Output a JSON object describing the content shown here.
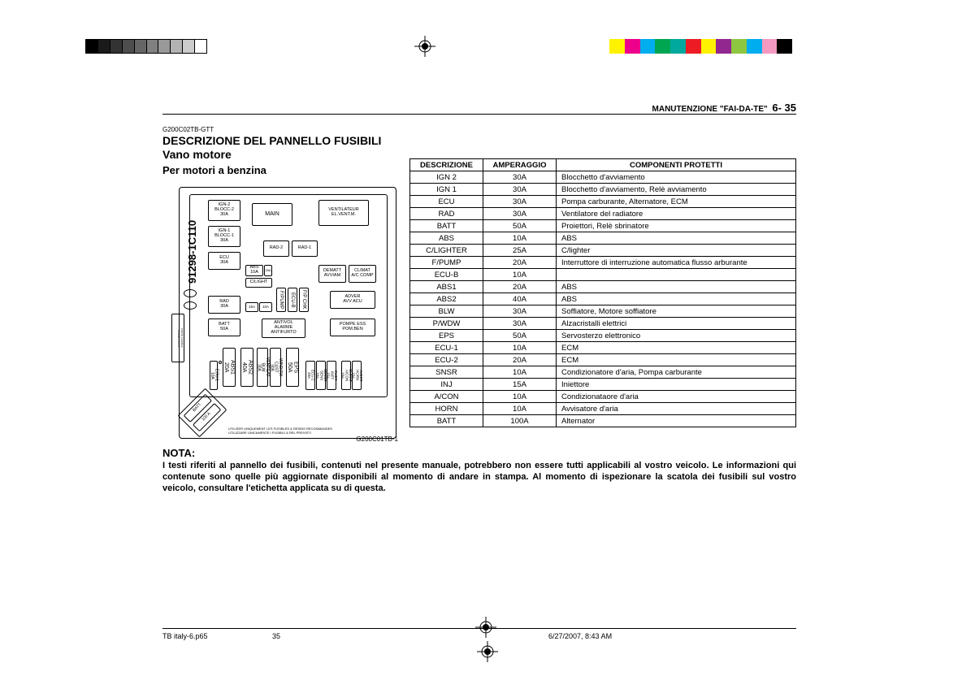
{
  "header": {
    "section": "MANUTENZIONE \"FAI-DA-TE\"",
    "pagenum": "6- 35",
    "refcode": "G200C02TB-GTT",
    "title1": "DESCRIZIONE DEL PANNELLO FUSIBILI",
    "title2": "Vano motore",
    "subtitle": "Per motori a benzina"
  },
  "diagram": {
    "partno": "91298-1C110",
    "caption": "G200C01TB-1",
    "tinytext1": "UTILISER UNIQUEMENT LES FUSIBLES & RESINS RECOMMANDES",
    "tinytext2": "UTILIZZARE UNICAMENTE I FUSIBILI & REL PREVISTI",
    "boxes": {
      "ign2": "IGN-2\nBLOCC-2\n30A",
      "ign1": "IGN-1\nBLOCC-1\n30A",
      "ecu": "ECU\n30A",
      "rad": "RAD\n30A",
      "batt50": "BATT\n50A",
      "main": "MAIN",
      "vent": "VENTILATEUR\nEL.VENT.M.",
      "rad2": "RAD-2",
      "rad1": "RAD-1",
      "abs10": "ABS\n10A",
      "clight": "C/LIGHT",
      "clight25": "25A",
      "fpump15": "15A",
      "fpump10": "10A",
      "fpump": "F/PUMP",
      "ecub": "ECU-B",
      "fpchk": "F/P CHK",
      "dematt": "DEMATT\nAVVIAM",
      "climat": "CLIMAT\nA/C COMP",
      "adver": "ADVER\nAVV ACU",
      "antivol": "ANTIVOL\nALARME\nANTIFURTO",
      "pompe": "POMPE ESS\nPOM.BEN",
      "abs1": "ABS1\n20A",
      "abs2": "ABS2\n40A",
      "vent30": "VENTILAT\nBLW\n30A",
      "wdw": "WINDOW\nCUST\n30A",
      "eps": "EPS\n50A",
      "ecu1": "ECU-1\n10A",
      "ecu2": "ECU-2\n20A",
      "sensr": "SENSR\nSENS\n10A",
      "inj": "INJET\nINET\n15A",
      "climat10": "CLIMAT\nA/CON\n10A",
      "avert": "AVERT\nHORN\n10A",
      "batt100": "BATT\n100 A"
    }
  },
  "table": {
    "headers": [
      "DESCRIZIONE",
      "AMPERAGGIO",
      "COMPONENTI  PROTETTI"
    ],
    "rows": [
      [
        "IGN 2",
        "30A",
        "Blocchetto d'avviamento"
      ],
      [
        "IGN 1",
        "30A",
        "Blocchetto d'avviamento, Relè avviamento"
      ],
      [
        "ECU",
        "30A",
        "Pompa carburante, Alternatore, ECM"
      ],
      [
        "RAD",
        "30A",
        "Ventilatore del radiatore"
      ],
      [
        "BATT",
        "50A",
        "Proiettori, Relè sbrinatore"
      ],
      [
        "ABS",
        "10A",
        "ABS"
      ],
      [
        "C/LIGHTER",
        "25A",
        "C/lighter"
      ],
      [
        "F/PUMP",
        "20A",
        "Interruttore di interruzione automatica flusso arburante"
      ],
      [
        "ECU-B",
        "10A",
        ""
      ],
      [
        "ABS1",
        "20A",
        "ABS"
      ],
      [
        "ABS2",
        "40A",
        "ABS"
      ],
      [
        "BLW",
        "30A",
        "Soffiatore, Motore soffiatore"
      ],
      [
        "P/WDW",
        "30A",
        "Alzacristalli elettrici"
      ],
      [
        "EPS",
        "50A",
        "Servosterzo elettronico"
      ],
      [
        "ECU-1",
        "10A",
        "ECM"
      ],
      [
        "ECU-2",
        "20A",
        "ECM"
      ],
      [
        "SNSR",
        "10A",
        "Condizionatore d'aria, Pompa carburante"
      ],
      [
        "INJ",
        "15A",
        "Iniettore"
      ],
      [
        "A/CON",
        "10A",
        "Condizionataore d'aria"
      ],
      [
        "HORN",
        "10A",
        "Avvisatore d'aria"
      ],
      [
        "BATT",
        "100A",
        "Alternator"
      ]
    ]
  },
  "nota": {
    "heading": "NOTA:",
    "body": "I testi riferiti al pannello dei fusibili, contenuti nel presente manuale, potrebbero non essere tutti applicabili al vostro veicolo. Le informazioni qui contenute sono quelle più aggiornate disponibili al momento di andare in stampa. Al momento di ispezionare la scatola dei fusibili sul vostro veicolo, consultare l'etichetta applicata su di questa."
  },
  "footer": {
    "filename": "TB italy-6.p65",
    "pagenum": "35",
    "datetime": "6/27/2007, 8:43 AM"
  },
  "printermarks": {
    "grays": [
      "#000000",
      "#1a1a1a",
      "#333333",
      "#4d4d4d",
      "#666666",
      "#808080",
      "#999999",
      "#b3b3b3",
      "#cccccc",
      "#ffffff"
    ],
    "colors": [
      "#fff200",
      "#ec008c",
      "#00aeef",
      "#00a651",
      "#00a99d",
      "#ed1c24",
      "#fff200",
      "#92278f",
      "#8dc63f",
      "#00adef",
      "#f49ac1",
      "#000000"
    ]
  }
}
